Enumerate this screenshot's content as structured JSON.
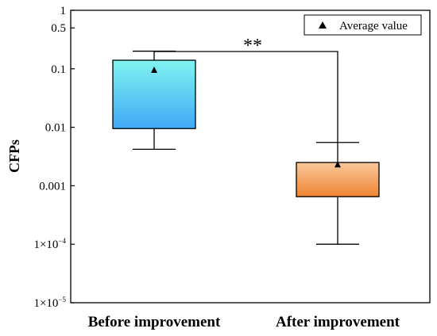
{
  "chart_data": {
    "type": "box",
    "ylabel": "CFPs",
    "y_scale": "log",
    "ylim": [
      1e-05,
      1
    ],
    "y_ticks": [
      {
        "value": 1e-05,
        "label": "1×10",
        "exp": "−5"
      },
      {
        "value": 0.0001,
        "label": "1×10",
        "exp": "−4"
      },
      {
        "value": 0.001,
        "label": "0.001"
      },
      {
        "value": 0.01,
        "label": "0.01"
      },
      {
        "value": 0.1,
        "label": "0.1"
      },
      {
        "value": 0.5,
        "label": "0.5"
      },
      {
        "value": 1,
        "label": "1"
      }
    ],
    "categories": [
      "Before improvement",
      "After improvement"
    ],
    "boxes": [
      {
        "name": "Before improvement",
        "whisker_low": 0.0042,
        "q1": 0.0095,
        "q3": 0.14,
        "whisker_high": 0.2,
        "mean": 0.095,
        "color_top": "#80f3f0",
        "color_bottom": "#3fa8f6"
      },
      {
        "name": "After improvement",
        "whisker_low": 0.0001,
        "q1": 0.00065,
        "q3": 0.0025,
        "whisker_high": 0.0055,
        "mean": 0.0023,
        "color_top": "#fbc89c",
        "color_bottom": "#ee8431"
      }
    ],
    "legend": {
      "label": "Average value",
      "marker": "triangle",
      "position": "top-right"
    },
    "significance": {
      "label": "**",
      "between": [
        0,
        1
      ]
    }
  }
}
